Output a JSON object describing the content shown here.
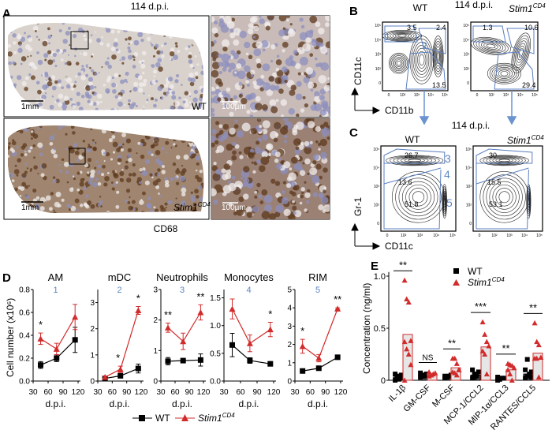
{
  "colors": {
    "wt": "#000000",
    "stim": "#d22b2b",
    "gate": "#5b7fc0",
    "bar_fill": "#e6e6e6"
  },
  "panelA": {
    "label": "A",
    "timepoint": "114 d.p.i.",
    "wt_label": "WT",
    "stim_label": "Stim1",
    "stim_sup": "CD4",
    "stain": "CD68",
    "scale_low": "1mm",
    "scale_high": "100µm"
  },
  "panelB": {
    "label": "B",
    "timepoint": "114 d.p.i.",
    "wt_label": "WT",
    "stim_label": "Stim1",
    "stim_sup": "CD4",
    "y_axis": "CD11c",
    "x_axis": "CD11b",
    "wt_values": [
      "3.5",
      "2.4",
      "13.5"
    ],
    "stim_values": [
      "1.3",
      "10.6",
      "29.4"
    ],
    "gate_numbers": [
      "1",
      "2"
    ]
  },
  "panelC": {
    "label": "C",
    "timepoint": "114 d.p.i.",
    "wt_label": "WT",
    "stim_label": "Stim1",
    "stim_sup": "CD4",
    "y_axis": "Gr-1",
    "x_axis": "CD11c",
    "wt_values": [
      "26.7",
      "13.6",
      "51.8"
    ],
    "stim_values": [
      "30",
      "15.5",
      "53.1"
    ],
    "gate_numbers": [
      "3",
      "4",
      "5"
    ]
  },
  "chart_data": [
    {
      "panel": "D",
      "type": "line",
      "ylabel": "Cell number (x10⁶)",
      "xlabel": "d.p.i.",
      "xticks": [
        30,
        60,
        90,
        120
      ],
      "legend": {
        "placement": "bottom",
        "entries": [
          "WT",
          "Stim1CD4"
        ],
        "wt": "WT",
        "stim": "Stim1",
        "stim_sup": "CD4"
      },
      "subplots": [
        {
          "title": "AM",
          "gate": "1",
          "ylim": [
            0,
            0.8
          ],
          "yticks": [
            "0.0",
            "0.2",
            "0.4",
            "0.6",
            "0.8"
          ],
          "ytick_values": [
            0,
            0.2,
            0.4,
            0.6,
            0.8
          ],
          "x": [
            45,
            77,
            114
          ],
          "series": [
            {
              "name": "WT",
              "values": [
                0.14,
                0.2,
                0.36
              ],
              "err": [
                0.03,
                0.03,
                0.11
              ]
            },
            {
              "name": "Stim1CD4",
              "values": [
                0.37,
                0.28,
                0.56
              ],
              "err": [
                0.05,
                0.05,
                0.11
              ]
            }
          ],
          "significance": [
            {
              "x": 45,
              "text": "*"
            }
          ]
        },
        {
          "title": "mDC",
          "gate": "2",
          "ylim": [
            0,
            3.5
          ],
          "yticks": [
            "0",
            "1",
            "2",
            "3"
          ],
          "ytick_values": [
            0,
            1,
            2,
            3
          ],
          "x": [
            45,
            77,
            114
          ],
          "series": [
            {
              "name": "WT",
              "values": [
                0.1,
                0.2,
                0.48
              ],
              "err": [
                0.04,
                0.04,
                0.17
              ]
            },
            {
              "name": "Stim1CD4",
              "values": [
                0.15,
                0.45,
                2.7
              ],
              "err": [
                0.04,
                0.12,
                0.15
              ]
            }
          ],
          "significance": [
            {
              "x": 72,
              "text": "*"
            },
            {
              "x": 114,
              "text": "*"
            }
          ]
        },
        {
          "title": "Neutrophils",
          "gate": "3",
          "ylim": [
            0,
            3
          ],
          "yticks": [
            "0",
            "1",
            "2",
            "3"
          ],
          "ytick_values": [
            0,
            1,
            2,
            3
          ],
          "x": [
            45,
            77,
            114
          ],
          "series": [
            {
              "name": "WT",
              "values": [
                0.65,
                0.67,
                0.69
              ],
              "err": [
                0.12,
                0.06,
                0.2
              ]
            },
            {
              "name": "Stim1CD4",
              "values": [
                1.75,
                1.3,
                2.25
              ],
              "err": [
                0.15,
                0.27,
                0.25
              ]
            }
          ],
          "significance": [
            {
              "x": 45,
              "text": "**"
            },
            {
              "x": 114,
              "text": "**"
            }
          ]
        },
        {
          "title": "Monocytes",
          "gate": "4",
          "ylim": [
            0,
            1.65
          ],
          "yticks": [
            "0.0",
            "0.5",
            "1.0",
            "1.5"
          ],
          "ytick_values": [
            0,
            0.5,
            1.0,
            1.5
          ],
          "x": [
            45,
            77,
            114
          ],
          "series": [
            {
              "name": "WT",
              "values": [
                0.65,
                0.37,
                0.31
              ],
              "err": [
                0.21,
                0.05,
                0.04
              ]
            },
            {
              "name": "Stim1CD4",
              "values": [
                1.3,
                0.68,
                0.93
              ],
              "err": [
                0.18,
                0.15,
                0.13
              ]
            }
          ],
          "significance": [
            {
              "x": 114,
              "text": "*"
            }
          ]
        },
        {
          "title": "RIM",
          "gate": "5",
          "ylim": [
            0,
            5
          ],
          "yticks": [
            "0",
            "1",
            "2",
            "3",
            "4",
            "5"
          ],
          "ytick_values": [
            0,
            1,
            2,
            3,
            4,
            5
          ],
          "x": [
            45,
            77,
            114
          ],
          "series": [
            {
              "name": "WT",
              "values": [
                0.55,
                0.7,
                1.3
              ],
              "err": [
                0.1,
                0.1,
                0.05
              ]
            },
            {
              "name": "Stim1CD4",
              "values": [
                1.9,
                1.25,
                3.95
              ],
              "err": [
                0.38,
                0.2,
                0.05
              ]
            }
          ],
          "significance": [
            {
              "x": 45,
              "text": "*"
            },
            {
              "x": 114,
              "text": "**"
            }
          ]
        }
      ]
    },
    {
      "panel": "E",
      "type": "bar",
      "ylabel": "Concentration (ng/ml)",
      "ylim": [
        0,
        1.05
      ],
      "yticks": [
        "0",
        "0.5",
        "1.0"
      ],
      "ytick_values": [
        0,
        0.5,
        1.0
      ],
      "categories": [
        "IL-1β",
        "GM-CSF",
        "M-CSF",
        "MCP-1/CCL2",
        "MIP-1α/CCL3",
        "RANTES/CCL5"
      ],
      "legend": {
        "placement": "top-right",
        "wt": "WT",
        "stim": "Stim1",
        "stim_sup": "CD4"
      },
      "series": [
        {
          "name": "WT",
          "means": [
            0.03,
            0.05,
            0.04,
            0.05,
            0.02,
            0.06
          ],
          "points": [
            [
              0.0,
              0.02,
              0.03,
              0.05,
              0.06,
              0.04,
              0.01,
              0.02
            ],
            [
              0.03,
              0.04,
              0.05,
              0.06,
              0.07,
              0.05,
              0.04
            ],
            [
              0.02,
              0.03,
              0.04,
              0.05,
              0.04,
              0.03
            ],
            [
              0.02,
              0.03,
              0.05,
              0.08,
              0.1,
              0.06,
              0.04
            ],
            [
              0.0,
              0.01,
              0.02,
              0.02,
              0.03,
              0.01
            ],
            [
              0.02,
              0.04,
              0.06,
              0.08,
              0.1,
              0.2,
              0.05,
              0.03
            ]
          ]
        },
        {
          "name": "Stim1CD4",
          "means": [
            0.44,
            0.06,
            0.12,
            0.32,
            0.1,
            0.26
          ],
          "points": [
            [
              0.96,
              0.78,
              0.75,
              0.38,
              0.37,
              0.3,
              0.25,
              0.15,
              0.0
            ],
            [
              0.04,
              0.05,
              0.06,
              0.07,
              0.08,
              0.05
            ],
            [
              0.21,
              0.21,
              0.16,
              0.1,
              0.08,
              0.07,
              0.05,
              0.1
            ],
            [
              0.56,
              0.44,
              0.37,
              0.33,
              0.28,
              0.25,
              0.06
            ],
            [
              0.16,
              0.15,
              0.14,
              0.12,
              0.1,
              0.06,
              0.0
            ],
            [
              0.55,
              0.37,
              0.34,
              0.22,
              0.21,
              0.21,
              0.03
            ]
          ]
        }
      ],
      "significance": [
        "**",
        "NS",
        "**",
        "***",
        "**",
        "**"
      ]
    }
  ]
}
